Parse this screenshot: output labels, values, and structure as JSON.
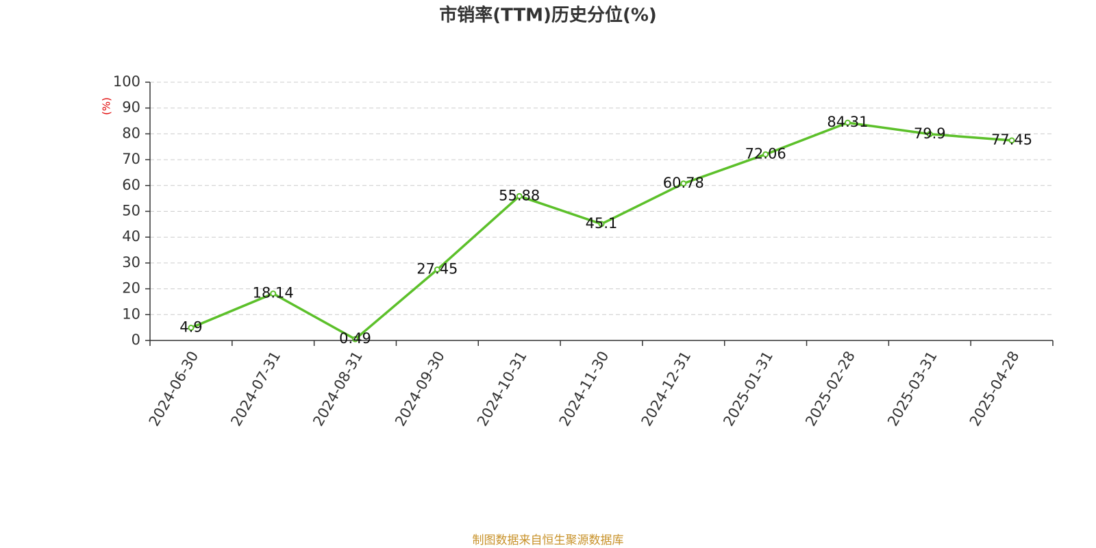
{
  "chart_data": {
    "type": "line",
    "title": "市销率(TTM)历史分位(%)",
    "y_label": "(%)",
    "categories": [
      "2024-06-30",
      "2024-07-31",
      "2024-08-31",
      "2024-09-30",
      "2024-10-31",
      "2024-11-30",
      "2024-12-31",
      "2025-01-31",
      "2025-02-28",
      "2025-03-31",
      "2025-04-28"
    ],
    "values": [
      4.9,
      18.14,
      0.49,
      27.45,
      55.88,
      45.1,
      60.78,
      72.06,
      84.31,
      79.9,
      77.45
    ],
    "color": "#5cc02a",
    "ylim": [
      0,
      100
    ],
    "yticks": [
      0,
      10,
      20,
      30,
      40,
      50,
      60,
      70,
      80,
      90,
      100
    ],
    "grid": true,
    "source": "制图数据来自恒生聚源数据库"
  }
}
